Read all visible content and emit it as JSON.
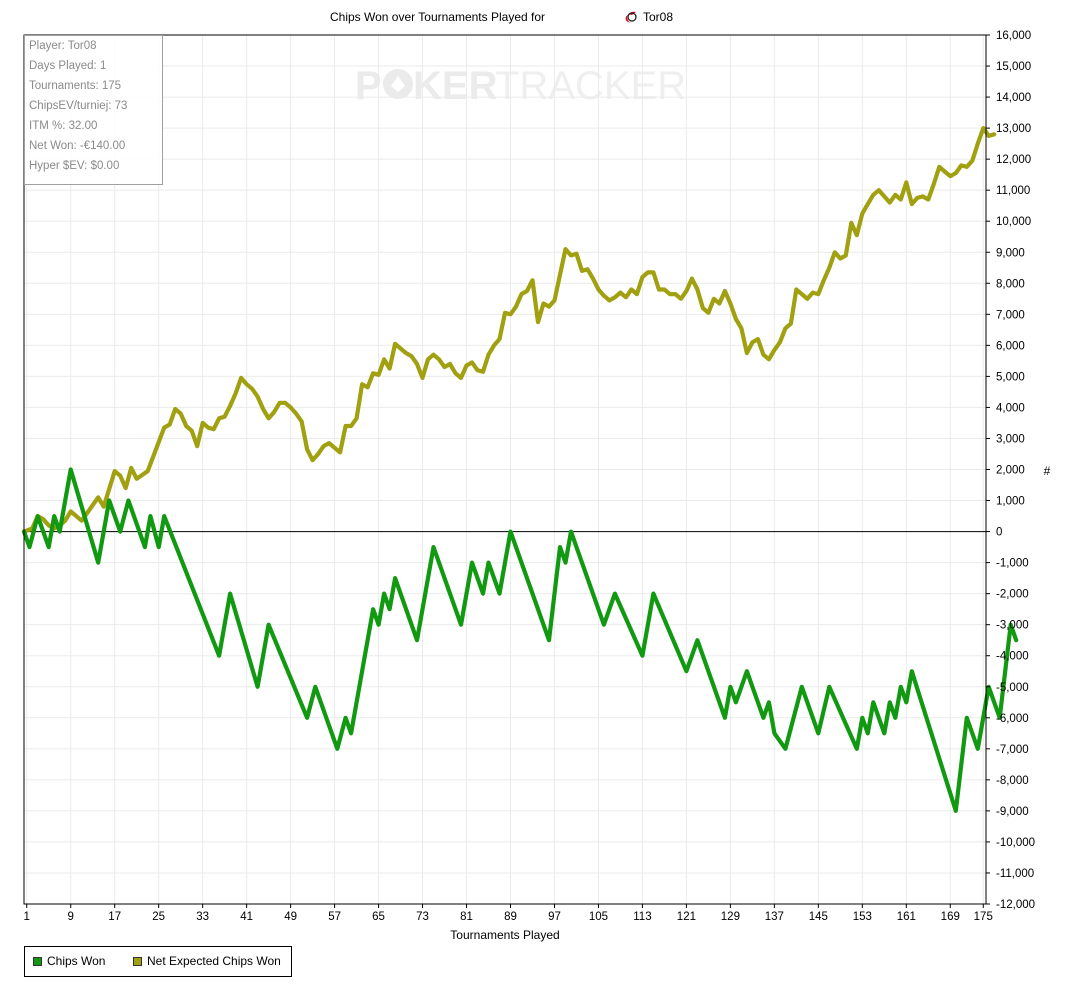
{
  "header": {
    "title_prefix": "Chips Won over Tournaments Played for",
    "player_name": "Tor08"
  },
  "watermark": {
    "part1": "P",
    "part2": "KER",
    "part3": "TRACKER"
  },
  "stats_box": {
    "lines": [
      "Player: Tor08",
      "Days Played: 1",
      "Tournaments: 175",
      "ChipsEV/turniej: 73",
      "ITM %: 32.00",
      "Net Won: -€140.00",
      "Hyper $EV: $0.00"
    ]
  },
  "legend": {
    "items": [
      {
        "label": "Chips Won",
        "color": "#119911"
      },
      {
        "label": "Net Expected Chips Won",
        "color": "#a0a010"
      }
    ]
  },
  "chart_data": {
    "type": "line",
    "title": "Chips Won over Tournaments Played for Tor08",
    "xlabel": "Tournaments Played",
    "ylabel": "#",
    "xlim": [
      0.5,
      175.5
    ],
    "ylim": [
      -12000,
      16000
    ],
    "x_ticks": [
      1,
      9,
      17,
      25,
      33,
      41,
      49,
      57,
      65,
      73,
      81,
      89,
      97,
      105,
      113,
      121,
      129,
      137,
      145,
      153,
      161,
      169,
      175
    ],
    "y_ticks": [
      16000,
      15000,
      14000,
      13000,
      12000,
      11000,
      10000,
      9000,
      8000,
      7000,
      6000,
      5000,
      4000,
      3000,
      2000,
      1000,
      0,
      -1000,
      -2000,
      -3000,
      -4000,
      -5000,
      -6000,
      -7000,
      -8000,
      -9000,
      -10000,
      -11000,
      -12000
    ],
    "y_tick_labels": [
      "16,000",
      "15,000",
      "14,000",
      "13,000",
      "12,000",
      "11,000",
      "10,000",
      "9,000",
      "8,000",
      "7,000",
      "6,000",
      "5,000",
      "4,000",
      "3,000",
      "2,000",
      "1,000",
      "0",
      "-1,000",
      "-2,000",
      "-3,000",
      "-4,000",
      "-5,000",
      "-6,000",
      "-7,000",
      "-8,000",
      "-9,000",
      "-10,000",
      "-11,000",
      "-12,000"
    ],
    "grid": true,
    "legend_position": "bottom-left",
    "series": [
      {
        "name": "Chips Won",
        "color": "#119911",
        "points": [
          [
            0.5,
            0
          ],
          [
            1.5,
            -500
          ],
          [
            3,
            500
          ],
          [
            5,
            -500
          ],
          [
            6,
            500
          ],
          [
            7,
            0
          ],
          [
            9,
            2000
          ],
          [
            14,
            -1000
          ],
          [
            16,
            1000
          ],
          [
            18,
            0
          ],
          [
            19.5,
            1000
          ],
          [
            22.5,
            -500
          ],
          [
            23.5,
            500
          ],
          [
            25,
            -500
          ],
          [
            26,
            500
          ],
          [
            36,
            -4000
          ],
          [
            38,
            -2000
          ],
          [
            43,
            -5000
          ],
          [
            45,
            -3000
          ],
          [
            52,
            -6000
          ],
          [
            53.5,
            -5000
          ],
          [
            57.5,
            -7000
          ],
          [
            59,
            -6000
          ],
          [
            60,
            -6500
          ],
          [
            64,
            -2500
          ],
          [
            65,
            -3000
          ],
          [
            66,
            -2000
          ],
          [
            67,
            -2500
          ],
          [
            68,
            -1500
          ],
          [
            72,
            -3500
          ],
          [
            75,
            -500
          ],
          [
            80,
            -3000
          ],
          [
            82,
            -1000
          ],
          [
            84,
            -2000
          ],
          [
            85,
            -1000
          ],
          [
            87,
            -2000
          ],
          [
            89,
            0
          ],
          [
            96,
            -3500
          ],
          [
            98,
            -500
          ],
          [
            99,
            -1000
          ],
          [
            100,
            0
          ],
          [
            106,
            -3000
          ],
          [
            108,
            -2000
          ],
          [
            113,
            -4000
          ],
          [
            115,
            -2000
          ],
          [
            121,
            -4500
          ],
          [
            123,
            -3500
          ],
          [
            128,
            -6000
          ],
          [
            129,
            -5000
          ],
          [
            130,
            -5500
          ],
          [
            132,
            -4500
          ],
          [
            134,
            -5500
          ],
          [
            135,
            -6000
          ],
          [
            136,
            -5500
          ],
          [
            137,
            -6500
          ],
          [
            139,
            -7000
          ],
          [
            142,
            -5000
          ],
          [
            145,
            -6500
          ],
          [
            147,
            -5000
          ],
          [
            152,
            -7000
          ],
          [
            153,
            -6000
          ],
          [
            154,
            -6500
          ],
          [
            155,
            -5500
          ],
          [
            157,
            -6500
          ],
          [
            158,
            -5500
          ],
          [
            159,
            -6000
          ],
          [
            160,
            -5000
          ],
          [
            161,
            -5500
          ],
          [
            162,
            -4500
          ],
          [
            170,
            -9000
          ],
          [
            172,
            -6000
          ],
          [
            174,
            -7000
          ],
          [
            176,
            -5000
          ],
          [
            178,
            -6000
          ],
          [
            180,
            -3000
          ],
          [
            181,
            -3500
          ]
        ]
      },
      {
        "name": "Net Expected Chips Won",
        "color": "#a0a010",
        "points": [
          [
            0.5,
            0
          ],
          [
            2,
            100
          ],
          [
            3,
            500
          ],
          [
            4,
            400
          ],
          [
            5,
            200
          ],
          [
            6,
            100
          ],
          [
            7,
            200
          ],
          [
            8,
            350
          ],
          [
            9,
            650
          ],
          [
            11,
            350
          ],
          [
            14,
            1100
          ],
          [
            15,
            800
          ],
          [
            17,
            1950
          ],
          [
            18,
            1800
          ],
          [
            19,
            1400
          ],
          [
            20,
            2050
          ],
          [
            21,
            1700
          ],
          [
            23,
            1950
          ],
          [
            26,
            3350
          ],
          [
            27,
            3450
          ],
          [
            28,
            3950
          ],
          [
            29,
            3800
          ],
          [
            30,
            3400
          ],
          [
            31,
            3250
          ],
          [
            32,
            2750
          ],
          [
            33,
            3500
          ],
          [
            34,
            3350
          ],
          [
            35,
            3300
          ],
          [
            36,
            3650
          ],
          [
            37,
            3700
          ],
          [
            38,
            4050
          ],
          [
            39,
            4450
          ],
          [
            40,
            4950
          ],
          [
            41,
            4750
          ],
          [
            42,
            4600
          ],
          [
            43,
            4350
          ],
          [
            44,
            3950
          ],
          [
            45,
            3650
          ],
          [
            46,
            3850
          ],
          [
            47,
            4150
          ],
          [
            48,
            4150
          ],
          [
            49,
            4000
          ],
          [
            50,
            3800
          ],
          [
            51,
            3550
          ],
          [
            52,
            2650
          ],
          [
            53,
            2300
          ],
          [
            54,
            2500
          ],
          [
            55,
            2750
          ],
          [
            56,
            2850
          ],
          [
            57,
            2700
          ],
          [
            58,
            2550
          ],
          [
            59,
            3400
          ],
          [
            60,
            3400
          ],
          [
            61,
            3650
          ],
          [
            62,
            4750
          ],
          [
            63,
            4650
          ],
          [
            64,
            5100
          ],
          [
            65,
            5050
          ],
          [
            66,
            5550
          ],
          [
            67,
            5250
          ],
          [
            68,
            6050
          ],
          [
            69,
            5900
          ],
          [
            70,
            5750
          ],
          [
            71,
            5650
          ],
          [
            72,
            5400
          ],
          [
            73,
            4950
          ],
          [
            74,
            5550
          ],
          [
            75,
            5700
          ],
          [
            76,
            5550
          ],
          [
            77,
            5300
          ],
          [
            78,
            5400
          ],
          [
            79,
            5100
          ],
          [
            80,
            4950
          ],
          [
            81,
            5350
          ],
          [
            82,
            5450
          ],
          [
            83,
            5200
          ],
          [
            84,
            5150
          ],
          [
            85,
            5700
          ],
          [
            86,
            6000
          ],
          [
            87,
            6200
          ],
          [
            88,
            7050
          ],
          [
            89,
            7000
          ],
          [
            90,
            7250
          ],
          [
            91,
            7650
          ],
          [
            92,
            7750
          ],
          [
            93,
            8100
          ],
          [
            94,
            6750
          ],
          [
            95,
            7350
          ],
          [
            96,
            7250
          ],
          [
            97,
            7450
          ],
          [
            99,
            9100
          ],
          [
            100,
            8900
          ],
          [
            101,
            8950
          ],
          [
            102,
            8400
          ],
          [
            103,
            8450
          ],
          [
            104,
            8150
          ],
          [
            105,
            7800
          ],
          [
            106,
            7600
          ],
          [
            107,
            7450
          ],
          [
            108,
            7550
          ],
          [
            109,
            7700
          ],
          [
            110,
            7550
          ],
          [
            111,
            7800
          ],
          [
            112,
            7650
          ],
          [
            113,
            8200
          ],
          [
            114,
            8350
          ],
          [
            115,
            8350
          ],
          [
            116,
            7800
          ],
          [
            117,
            7800
          ],
          [
            118,
            7650
          ],
          [
            119,
            7650
          ],
          [
            120,
            7500
          ],
          [
            121,
            7750
          ],
          [
            122,
            8150
          ],
          [
            123,
            7800
          ],
          [
            124,
            7200
          ],
          [
            125,
            7050
          ],
          [
            126,
            7500
          ],
          [
            127,
            7350
          ],
          [
            128,
            7750
          ],
          [
            129,
            7350
          ],
          [
            130,
            6850
          ],
          [
            131,
            6550
          ],
          [
            132,
            5750
          ],
          [
            133,
            6100
          ],
          [
            134,
            6200
          ],
          [
            135,
            5700
          ],
          [
            136,
            5550
          ],
          [
            137,
            5850
          ],
          [
            138,
            6100
          ],
          [
            139,
            6550
          ],
          [
            140,
            6700
          ],
          [
            141,
            7800
          ],
          [
            142,
            7650
          ],
          [
            143,
            7500
          ],
          [
            144,
            7700
          ],
          [
            145,
            7650
          ],
          [
            146,
            8100
          ],
          [
            147,
            8500
          ],
          [
            148,
            9000
          ],
          [
            149,
            8800
          ],
          [
            150,
            8900
          ],
          [
            151,
            9950
          ],
          [
            152,
            9550
          ],
          [
            153,
            10250
          ],
          [
            154,
            10550
          ],
          [
            155,
            10850
          ],
          [
            156,
            11000
          ],
          [
            157,
            10800
          ],
          [
            158,
            10600
          ],
          [
            159,
            10850
          ],
          [
            160,
            10700
          ],
          [
            161,
            11250
          ],
          [
            162,
            10550
          ],
          [
            163,
            10750
          ],
          [
            164,
            10800
          ],
          [
            165,
            10700
          ],
          [
            166,
            11200
          ],
          [
            167,
            11750
          ],
          [
            168,
            11600
          ],
          [
            169,
            11450
          ],
          [
            170,
            11550
          ],
          [
            171,
            11800
          ],
          [
            172,
            11750
          ],
          [
            173,
            11950
          ],
          [
            174,
            12500
          ],
          [
            175,
            13000
          ],
          [
            176,
            12750
          ],
          [
            177,
            12800
          ]
        ]
      }
    ]
  }
}
